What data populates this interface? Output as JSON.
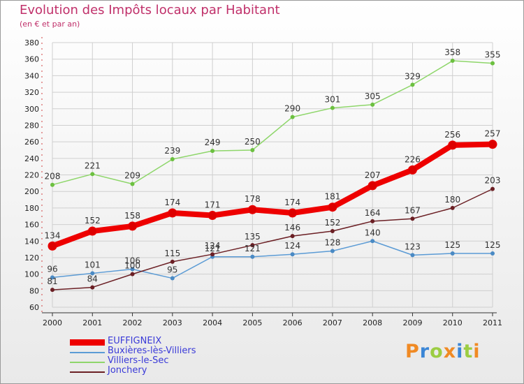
{
  "header": {
    "title": "Evolution des Impôts locaux par Habitant",
    "subtitle": "(en € et par an)"
  },
  "logo": {
    "text": "Proxiti"
  },
  "colors": {
    "title": "#c0306a",
    "axis": "#333333",
    "grid": "#cfcfcf",
    "legend_text": "#3a3ad8"
  },
  "chart_data": {
    "type": "line",
    "x": [
      2000,
      2001,
      2002,
      2003,
      2004,
      2005,
      2006,
      2007,
      2008,
      2009,
      2010,
      2011
    ],
    "ylim": [
      60,
      380
    ],
    "yticks": [
      60,
      80,
      100,
      120,
      140,
      160,
      180,
      200,
      220,
      240,
      260,
      280,
      300,
      320,
      340,
      360,
      380
    ],
    "grid": true,
    "legend_position": "bottom-left",
    "series": [
      {
        "name": "EUFFIGNEIX",
        "color": "#ee0000",
        "marker": "#dd0000",
        "values": [
          134,
          152,
          158,
          174,
          171,
          178,
          174,
          181,
          207,
          226,
          256,
          257
        ]
      },
      {
        "name": "Buxières-lès-Villiers",
        "color": "#5b9bd5",
        "marker": "#4a8ac4",
        "values": [
          96,
          101,
          106,
          95,
          121,
          121,
          124,
          128,
          140,
          123,
          125,
          125
        ]
      },
      {
        "name": "Villiers-le-Sec",
        "color": "#8ed66a",
        "marker": "#6cc040",
        "values": [
          208,
          221,
          209,
          239,
          249,
          250,
          290,
          301,
          305,
          329,
          358,
          355
        ]
      },
      {
        "name": "Jonchery",
        "color": "#6b1f24",
        "marker": "#6b1f24",
        "values": [
          81,
          84,
          100,
          115,
          124,
          135,
          146,
          152,
          164,
          167,
          180,
          203
        ]
      }
    ]
  }
}
